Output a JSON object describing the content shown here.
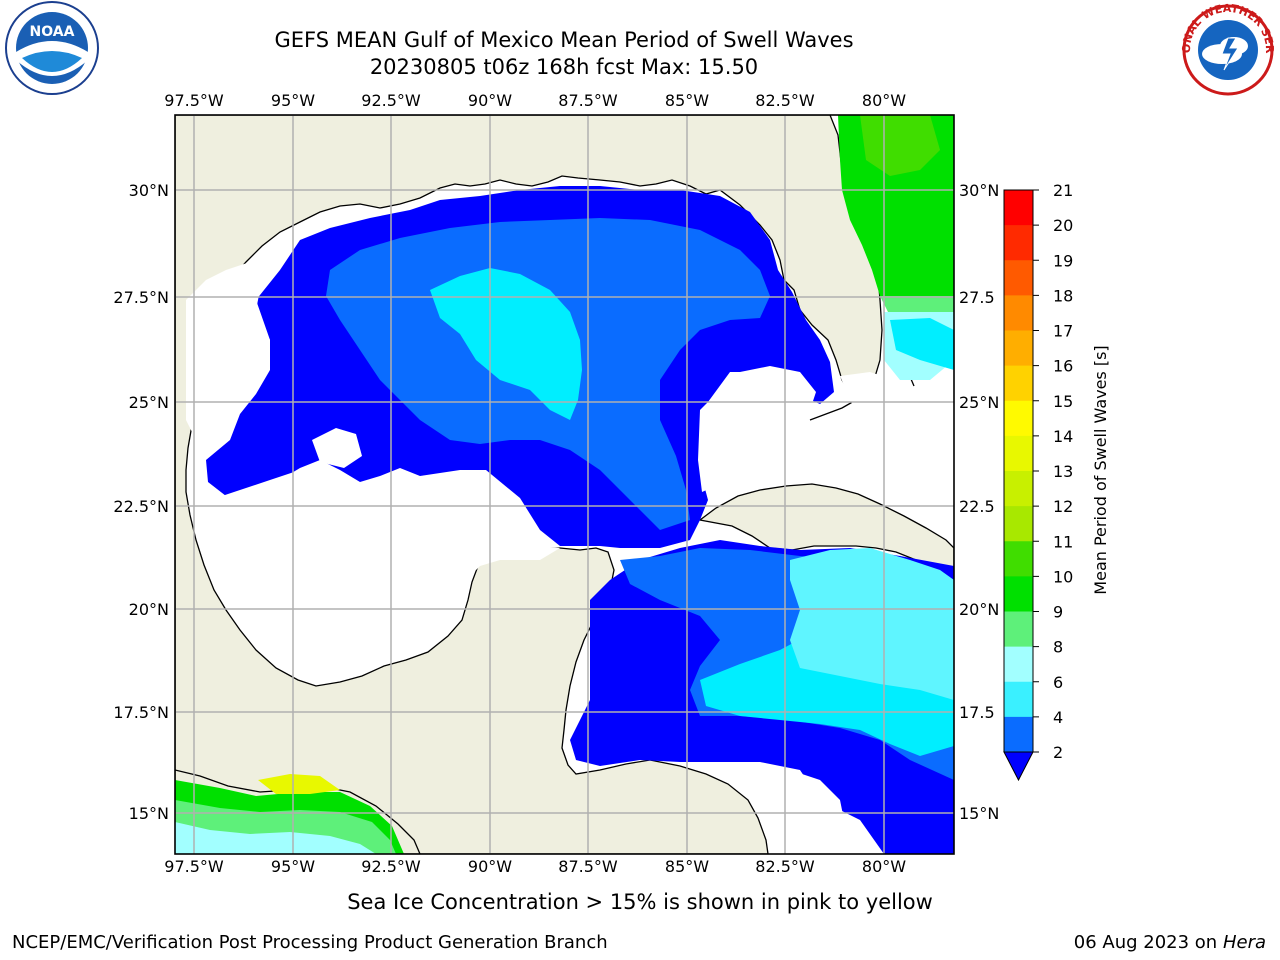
{
  "header": {
    "title_line1": "GEFS MEAN Gulf of Mexico Mean Period of Swell Waves",
    "title_line2": "20230805 t06z 168h fcst   Max: 15.50"
  },
  "map": {
    "lon_ticks": [
      "97.5°W",
      "95°W",
      "92.5°W",
      "90°W",
      "87.5°W",
      "85°W",
      "82.5°W",
      "80°W"
    ],
    "lat_ticks_left": [
      "30°N",
      "27.5°N",
      "25°N",
      "22.5°N",
      "20°N",
      "17.5°N",
      "15°N"
    ],
    "lat_ticks_right": [
      "30°N",
      "27.5",
      "25°N",
      "22.5",
      "20°N",
      "17.5",
      "15°N"
    ],
    "land_color": "#efefdf",
    "water_color": "#ffffff",
    "grid_color": "#b0b0b0"
  },
  "colorbar": {
    "label": "Mean Period of Swell Waves [s]",
    "tick_labels": [
      "2",
      "4",
      "6",
      "8",
      "9",
      "10",
      "11",
      "12",
      "13",
      "14",
      "15",
      "16",
      "17",
      "18",
      "19",
      "20",
      "21"
    ],
    "colors": [
      "#0a6cff",
      "#00cfff",
      "#3af0ff",
      "#a2ffff",
      "#5ef07a",
      "#00e000",
      "#40dd00",
      "#a8e800",
      "#c8f000",
      "#e8f800",
      "#fffa00",
      "#ffd200",
      "#ffae00",
      "#ff8a00",
      "#ff5a00",
      "#ff2a00",
      "#ff0000"
    ],
    "under_color": "#0000ff"
  },
  "footer": {
    "ice_note": "Sea Ice Concentration > 15% is shown in pink to yellow",
    "credit": "NCEP/EMC/Verification Post Processing Product Generation Branch",
    "date": "06 Aug 2023 on",
    "system": "Hera"
  },
  "logos": {
    "noaa_text": "NOAA",
    "nws_text": "NATIONAL WEATHER SERVICE"
  }
}
